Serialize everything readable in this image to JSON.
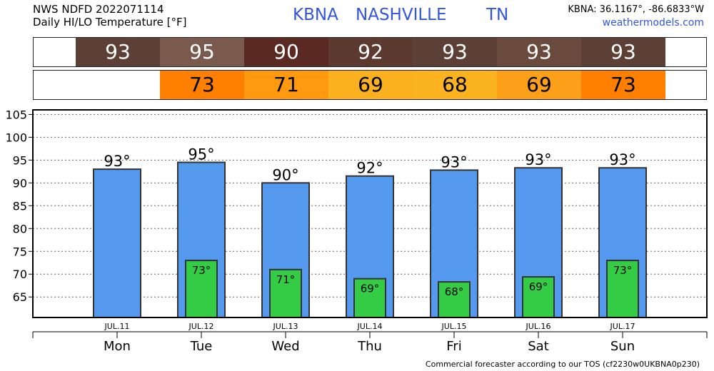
{
  "header": {
    "line1": "NWS NDFD 2022071114",
    "line2": "Daily HI/LO Temperature [°F]",
    "station_id": "KBNA",
    "city": "NASHVILLE",
    "state": "TN",
    "coords": "KBNA: 36.1167°, -86.6833°W",
    "site": "weathermodels.com"
  },
  "hi_band": {
    "values": [
      "93",
      "95",
      "90",
      "92",
      "93",
      "93",
      "93"
    ],
    "colors": [
      "#5c4035",
      "#7b5a4e",
      "#5a2a22",
      "#5d3a30",
      "#5c4035",
      "#6b4a3e",
      "#5c4035"
    ]
  },
  "lo_band": {
    "values": [
      "",
      "73",
      "71",
      "69",
      "68",
      "69",
      "73"
    ],
    "colors": [
      "",
      "#ff8000",
      "#ff9a10",
      "#fbb020",
      "#fbb420",
      "#fba018",
      "#ff8000"
    ]
  },
  "chart_data": {
    "type": "bar",
    "title": "Daily HI/LO Temperature [°F]",
    "categories": [
      "Mon",
      "Tue",
      "Wed",
      "Thu",
      "Fri",
      "Sat",
      "Sun"
    ],
    "dates": [
      "JUL.11",
      "JUL.12",
      "JUL.13",
      "JUL.14",
      "JUL.15",
      "JUL.16",
      "JUL.17"
    ],
    "series": [
      {
        "name": "HI",
        "values": [
          93,
          95,
          90,
          92,
          93,
          93,
          93
        ],
        "bar_values": [
          93,
          94.5,
          90,
          91.5,
          92.8,
          93.3,
          93.3
        ],
        "labels": [
          "93°",
          "95°",
          "90°",
          "92°",
          "93°",
          "93°",
          "93°"
        ],
        "color": "#5599ee"
      },
      {
        "name": "LO",
        "values": [
          null,
          73,
          71,
          69,
          68,
          69,
          73
        ],
        "bar_values": [
          null,
          73,
          71,
          69,
          68.3,
          69.4,
          73
        ],
        "labels": [
          "",
          "73°",
          "71°",
          "69°",
          "68°",
          "69°",
          "73°"
        ],
        "color": "#33cc44"
      }
    ],
    "y_ticks": [
      65,
      70,
      75,
      80,
      85,
      90,
      95,
      100,
      105
    ],
    "ylim": [
      60.5,
      106
    ],
    "grid": true
  },
  "footer": "Commercial forecaster according to our TOS (cf2230w0UKBNA0p230)"
}
